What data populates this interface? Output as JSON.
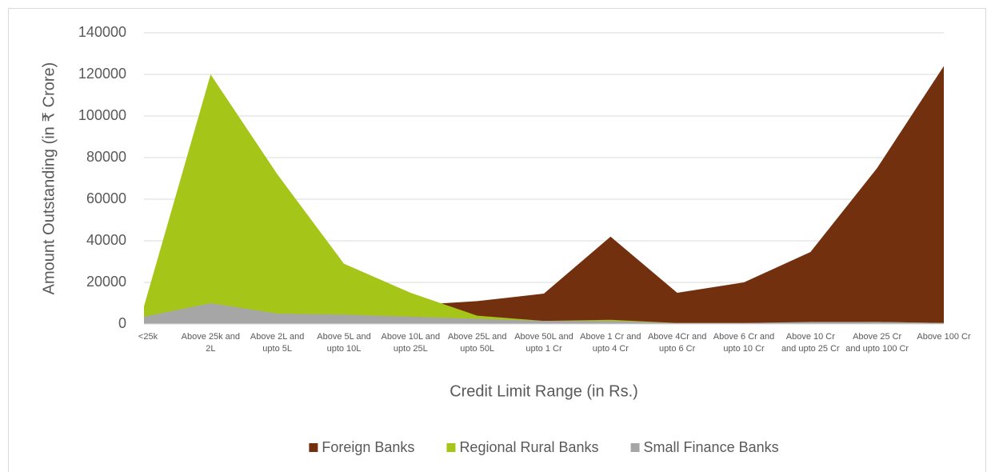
{
  "chart_data": {
    "type": "area",
    "x_label": "Credit Limit Range (in Rs.)",
    "y_label": "Amount Outstanding (in ₹ Crore)",
    "categories": [
      "<25k",
      "Above 25k and 2L",
      "Above 2L and upto 5L",
      "Above 5L and upto 10L",
      "Above 10L and upto 25L",
      "Above 25L and upto 50L",
      "Above 50L and upto 1 Cr",
      "Above 1 Cr and upto 4 Cr",
      "Above 4Cr and upto 6 Cr",
      "Above 6 Cr and upto 10 Cr",
      "Above 10 Cr and upto 25 Cr",
      "Above 25 Cr and upto 100 Cr",
      "Above 100 Cr"
    ],
    "series": [
      {
        "name": "Foreign Banks",
        "color": "#73300f",
        "values": [
          500,
          2000,
          4000,
          6000,
          9000,
          11000,
          14600,
          42000,
          15000,
          20000,
          34600,
          75000,
          124000
        ]
      },
      {
        "name": "Regional Rural Banks",
        "color": "#a5c518",
        "values": [
          8500,
          120000,
          72000,
          29000,
          15000,
          4000,
          1500,
          2000,
          500,
          500,
          800,
          1000,
          500
        ]
      },
      {
        "name": "Small Finance Banks",
        "color": "#a6a6a6",
        "values": [
          3500,
          10000,
          5000,
          4500,
          3500,
          2500,
          1500,
          1500,
          500,
          500,
          1000,
          1000,
          500
        ]
      }
    ],
    "ylim": [
      0,
      140000
    ],
    "yticks": [
      0,
      20000,
      40000,
      60000,
      80000,
      100000,
      120000,
      140000
    ],
    "grid": true,
    "legend": "bottom"
  }
}
